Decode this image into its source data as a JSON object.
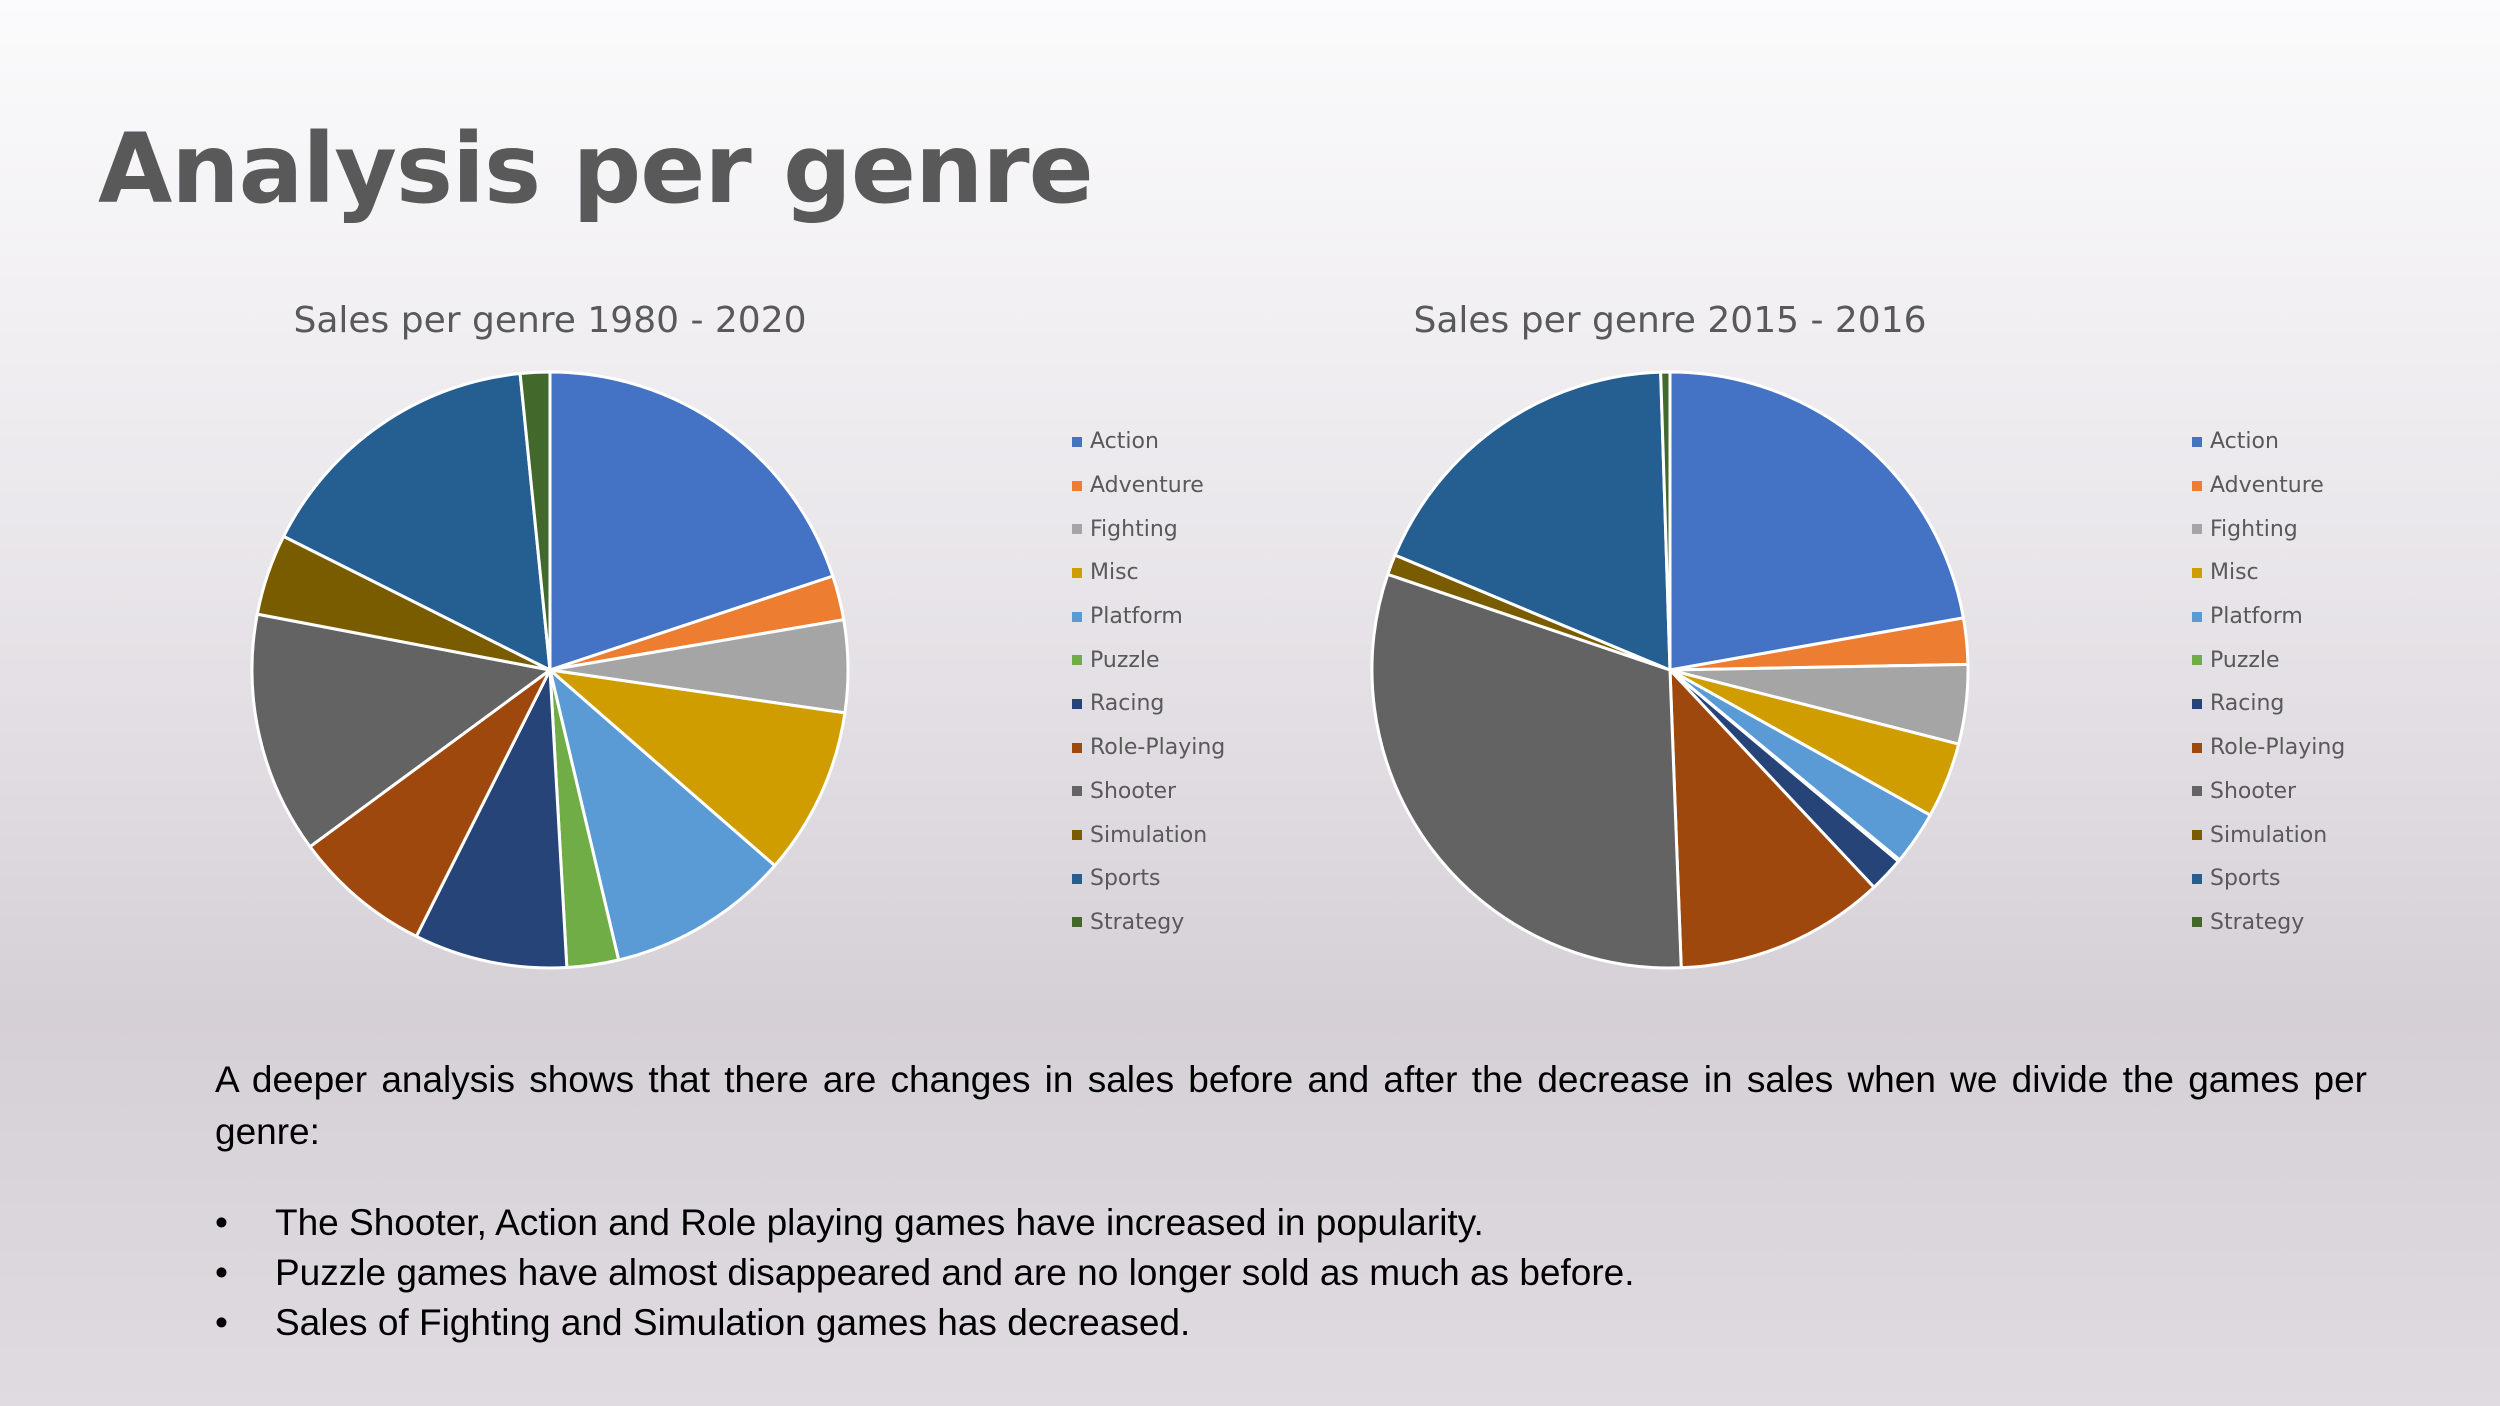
{
  "slide": {
    "title": "Analysis per genre",
    "intro": "A deeper analysis shows that there are changes in sales before and after the decrease in sales when we divide the games per genre:",
    "bullet_glyph": "•",
    "bullets": [
      "The Shooter, Action and Role playing games have increased in popularity.",
      "Puzzle games have almost disappeared and are no longer sold as much as before.",
      "Sales of Fighting and Simulation games has decreased."
    ]
  },
  "chart_data": [
    {
      "type": "pie",
      "title": "Sales per genre 1980 - 2020",
      "categories": [
        "Action",
        "Adventure",
        "Fighting",
        "Misc",
        "Platform",
        "Puzzle",
        "Racing",
        "Role-Playing",
        "Shooter",
        "Simulation",
        "Sports",
        "Strategy"
      ],
      "values": [
        19.9,
        2.4,
        5.0,
        9.1,
        9.9,
        2.8,
        8.3,
        7.5,
        13.1,
        4.4,
        16.0,
        1.6
      ],
      "colors": [
        "#4472c4",
        "#ed7d31",
        "#a5a5a5",
        "#d09d00",
        "#5b9bd5",
        "#70ad47",
        "#264478",
        "#9e480e",
        "#636363",
        "#7a5c00",
        "#255e91",
        "#43682b"
      ],
      "legend_position": "right"
    },
    {
      "type": "pie",
      "title": "Sales per genre 2015 - 2016",
      "categories": [
        "Action",
        "Adventure",
        "Fighting",
        "Misc",
        "Platform",
        "Puzzle",
        "Racing",
        "Role-Playing",
        "Shooter",
        "Simulation",
        "Sports",
        "Strategy"
      ],
      "values": [
        22.2,
        2.5,
        4.3,
        4.1,
        2.9,
        0.1,
        1.9,
        11.4,
        30.8,
        1.1,
        18.2,
        0.5
      ],
      "colors": [
        "#4472c4",
        "#ed7d31",
        "#a5a5a5",
        "#d09d00",
        "#5b9bd5",
        "#70ad47",
        "#264478",
        "#9e480e",
        "#636363",
        "#7a5c00",
        "#255e91",
        "#43682b"
      ],
      "legend_position": "right"
    }
  ]
}
